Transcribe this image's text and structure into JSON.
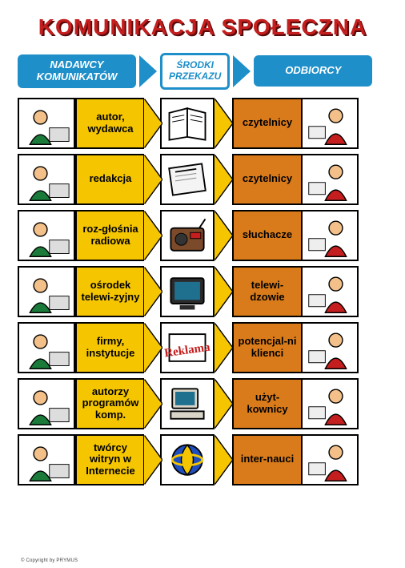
{
  "title": "KOMUNIKACJA SPOŁECZNA",
  "colors": {
    "title_color": "#c41e1e",
    "title_shadow": "#5a0a0a",
    "header_blue": "#1f8fc9",
    "yellow": "#f5c600",
    "orange": "#d97b1a",
    "border": "#000000",
    "background": "#ffffff"
  },
  "header": {
    "left": "NADAWCY KOMUNIKATÓW",
    "middle": "ŚRODKI PRZEKAZU",
    "right": "ODBIORCY"
  },
  "rows": [
    {
      "sender": "autor, wydawca",
      "receiver": "czytelnicy",
      "icon": "book"
    },
    {
      "sender": "redakcja",
      "receiver": "czytelnicy",
      "icon": "newspaper"
    },
    {
      "sender": "roz-głośnia radiowa",
      "receiver": "słuchacze",
      "icon": "radio"
    },
    {
      "sender": "ośrodek telewi-zyjny",
      "receiver": "telewi-dzowie",
      "icon": "tv"
    },
    {
      "sender": "firmy, instytucje",
      "receiver": "potencjal-ni klienci",
      "icon": "ad"
    },
    {
      "sender": "autorzy programów komp.",
      "receiver": "użyt-kownicy",
      "icon": "computer"
    },
    {
      "sender": "twórcy witryn w Internecie",
      "receiver": "inter-nauci",
      "icon": "internet"
    }
  ],
  "footer": "© Copyright by PRYMUS"
}
